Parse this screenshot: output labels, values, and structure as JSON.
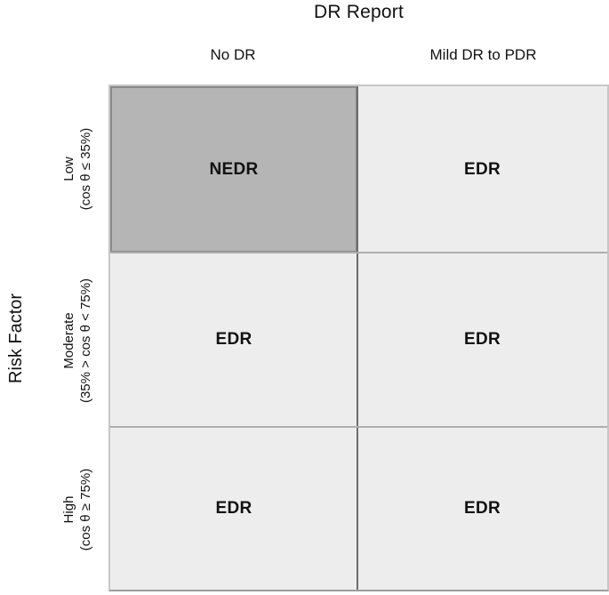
{
  "title": "DR Report",
  "y_axis_label": "Risk Factor",
  "columns": [
    "No DR",
    "Mild DR to PDR"
  ],
  "rows": [
    {
      "name": "Low",
      "range": "(cos θ ≤ 35%)"
    },
    {
      "name": "Moderate",
      "range": "(35% > cos θ < 75%)"
    },
    {
      "name": "High",
      "range": "(cos θ ≥ 75%)"
    }
  ],
  "cells": [
    [
      "NEDR",
      "EDR"
    ],
    [
      "EDR",
      "EDR"
    ],
    [
      "EDR",
      "EDR"
    ]
  ],
  "colors": {
    "highlight_cell_bg": "#b5b5b5",
    "highlight_cell_border": "#8a8a8a",
    "cell_bg": "#ededed",
    "column_divider": "#6e6e6e",
    "row_divider": "#aeaeae",
    "text": "#111111"
  }
}
